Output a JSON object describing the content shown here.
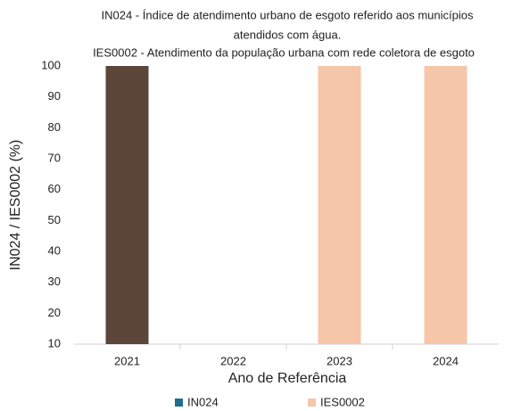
{
  "chart_data": {
    "type": "bar",
    "title": [
      "IN024 - Índice de atendimento urbano de esgoto referido aos municípios",
      "atendidos com água.",
      "IES0002 - Atendimento da população urbana com rede coletora de esgoto"
    ],
    "x_label": "Ano de Referência",
    "y_label": "IN024 / IES0002  (%)",
    "categories": [
      "2021",
      "2022",
      "2023",
      "2024"
    ],
    "series": [
      {
        "name": "IN024",
        "color": "#1f6e8c",
        "values": [
          100,
          null,
          null,
          null
        ],
        "point_colors": [
          "#5c4539",
          null,
          null,
          null
        ]
      },
      {
        "name": "IES0002",
        "color": "#f6c6a8",
        "values": [
          null,
          null,
          100,
          100
        ]
      }
    ],
    "ylim": [
      10,
      100
    ],
    "yticks": [
      10,
      20,
      30,
      40,
      50,
      60,
      70,
      80,
      90,
      100
    ],
    "legend": "bottom"
  }
}
